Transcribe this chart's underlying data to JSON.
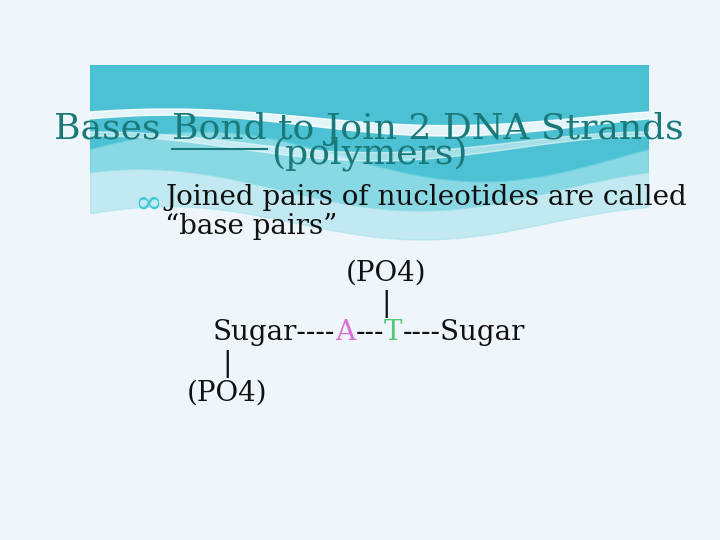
{
  "title_line1": "Bases Bond to Join 2 DNA Strands",
  "title_line2": "(polymers)",
  "title_color": "#1a7a7a",
  "bullet_symbol": "∞",
  "bullet_symbol_color": "#40c8d0",
  "bullet_text_line1": "Joined pairs of nucleotides are called",
  "bullet_text_line2": "“base pairs”",
  "po4_top": "(PO4)",
  "po4_bottom": "(PO4)",
  "sugar_left": "Sugar----",
  "A_letter": "A",
  "A_color": "#da70d6",
  "dash_middle": "---",
  "T_letter": "T",
  "T_color": "#50c878",
  "sugar_right": "----Sugar",
  "pipe": "|",
  "bg_color": "#eef6fb",
  "wave_color1": "#4fc8d8",
  "wave_color2": "#7dd8e8",
  "wave_color3": "#aae0ee",
  "text_color": "#111111",
  "title_fontsize": 26,
  "body_fontsize": 20,
  "diagram_fontsize": 20,
  "bullet_fontsize": 24
}
